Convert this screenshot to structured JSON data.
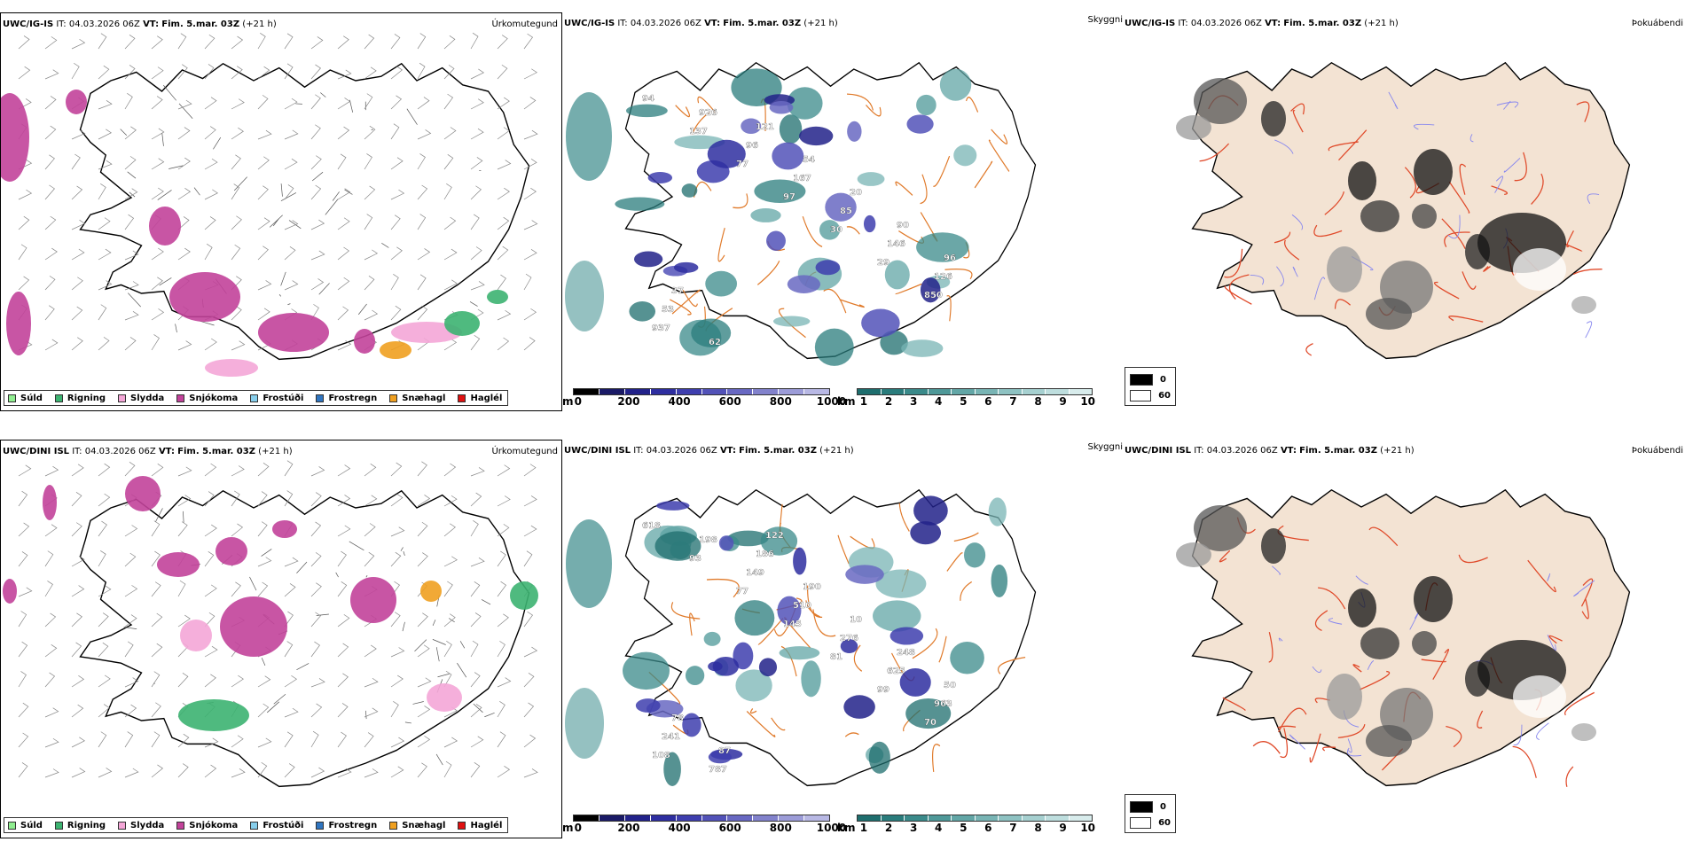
{
  "rows": [
    {
      "precip_title": {
        "model": "UWC/IG-IS",
        "it_label": "IT:",
        "it_value": "04.03.2026 06Z",
        "vt_label": "VT:",
        "vt_value": "Fim. 5.mar. 03Z",
        "lead": "(+21 h)"
      },
      "cloud_title": {
        "model": "UWC/IG-IS",
        "it_label": "IT:",
        "it_value": "04.03.2026 06Z",
        "vt_label": "VT:",
        "vt_value": "Fim. 5.mar. 03Z",
        "lead": "(+21 h)"
      },
      "fog_title": {
        "model": "UWC/IG-IS",
        "it_label": "IT:",
        "it_value": "04.03.2026 06Z",
        "vt_label": "VT:",
        "vt_value": "Fim. 5.mar. 03Z",
        "lead": "(+21 h)"
      },
      "cloud_labels": [
        "94",
        "137",
        "77",
        "97",
        "30",
        "29",
        "850",
        "937",
        "926",
        "96",
        "167",
        "85",
        "146",
        "126",
        "53",
        "62",
        "121",
        "54",
        "20",
        "90",
        "96",
        "37"
      ]
    },
    {
      "precip_title": {
        "model": "UWC/DINI ISL",
        "it_label": "IT:",
        "it_value": "04.03.2026 06Z",
        "vt_label": "VT:",
        "vt_value": "Fim. 5.mar. 03Z",
        "lead": "(+21 h)"
      },
      "cloud_title": {
        "model": "UWC/DINI ISL",
        "it_label": "IT:",
        "it_value": "04.03.2026 06Z",
        "vt_label": "VT:",
        "vt_value": "Fim. 5.mar. 03Z",
        "lead": "(+21 h)"
      },
      "fog_title": {
        "model": "UWC/DINI ISL",
        "it_label": "IT:",
        "it_value": "04.03.2026 06Z",
        "vt_label": "VT:",
        "vt_value": "Fim. 5.mar. 03Z",
        "lead": "(+21 h)"
      },
      "cloud_labels": [
        "618",
        "93",
        "77",
        "145",
        "81",
        "99",
        "70",
        "108",
        "198",
        "149",
        "510",
        "276",
        "625",
        "963",
        "241",
        "787",
        "186",
        "190",
        "10",
        "248",
        "50",
        "78",
        "87",
        "122"
      ]
    }
  ],
  "labels": {
    "precip_type": "Úrkomutegund",
    "visibility": "Skyggni",
    "fog": "Þokuábendi"
  },
  "precip_legend": [
    {
      "label": "Súld",
      "color": "#90ee90"
    },
    {
      "label": "Rigning",
      "color": "#3cb371"
    },
    {
      "label": "Slydda",
      "color": "#f4a6d7"
    },
    {
      "label": "Snjókoma",
      "color": "#c2429a"
    },
    {
      "label": "Frostúði",
      "color": "#87ceeb"
    },
    {
      "label": "Frostregn",
      "color": "#2f75c0"
    },
    {
      "label": "Snæhagl",
      "color": "#f0a020"
    },
    {
      "label": "Haglél",
      "color": "#e01010"
    }
  ],
  "cloud_base_bar": {
    "unit": "m",
    "ticks": [
      "0",
      "200",
      "400",
      "600",
      "800",
      "1000"
    ],
    "colors": [
      "#000000",
      "#1a1a66",
      "#22228a",
      "#2e2ea0",
      "#3e3eae",
      "#5252b8",
      "#6868c2",
      "#8282cc",
      "#9c9cd8",
      "#b8b8e4"
    ]
  },
  "visibility_bar": {
    "unit": "km",
    "ticks": [
      "1",
      "2",
      "3",
      "4",
      "5",
      "6",
      "7",
      "8",
      "9",
      "10"
    ],
    "colors": [
      "#1e6e6e",
      "#2a7c7c",
      "#3a8a8a",
      "#4e9898",
      "#62a6a6",
      "#78b4b4",
      "#8ec2c2",
      "#a6d0d0",
      "#bedede",
      "#d8ecec"
    ]
  },
  "fog_legend": [
    {
      "label": "0",
      "color": "#000000"
    },
    {
      "label": "60",
      "color": "#ffffff"
    }
  ],
  "colors": {
    "land": "#f3e3d3",
    "roads_orange": "#e07a2a",
    "roads_red": "#e04a2a",
    "rivers": "#8888ee"
  }
}
